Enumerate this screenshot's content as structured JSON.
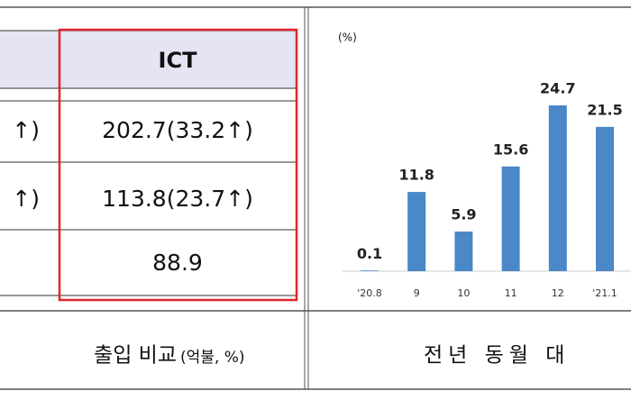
{
  "table": {
    "header": "ICT",
    "left_fragments": [
      "↑)",
      "↑)"
    ],
    "ict_column": [
      "202.7(33.2↑)",
      "113.8(23.7↑)",
      "88.9"
    ]
  },
  "captions": {
    "left": "출입 비교",
    "left_unit": "(억불, %)",
    "right": "전년 동월 대"
  },
  "chart_data": {
    "type": "bar",
    "unit_label": "(%)",
    "categories": [
      "'20.8",
      "9",
      "10",
      "11",
      "12",
      "'21.1"
    ],
    "values": [
      0.1,
      11.8,
      5.9,
      15.6,
      24.7,
      21.5
    ],
    "color": "#4a88c8"
  }
}
